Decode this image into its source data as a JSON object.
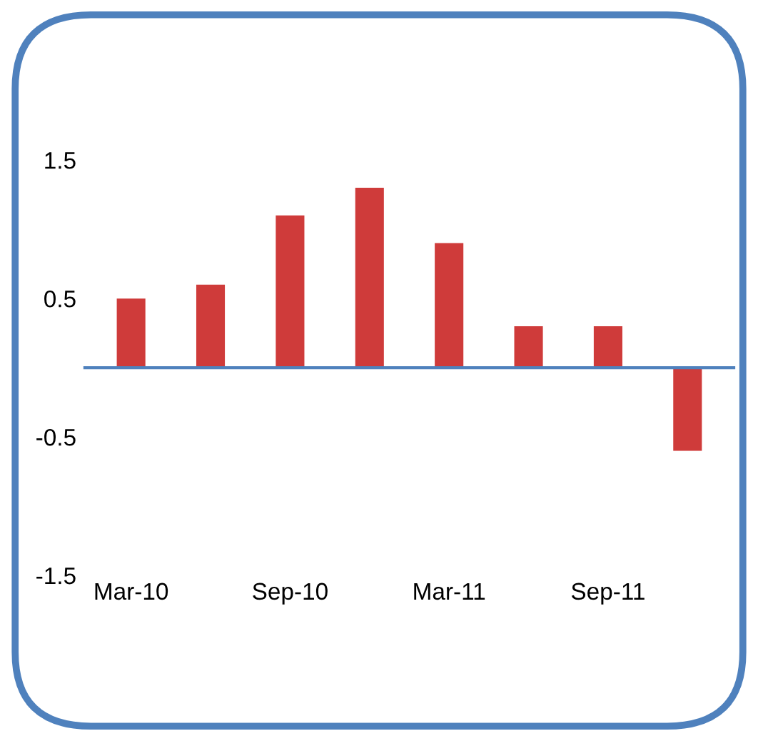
{
  "chart_data": {
    "type": "bar",
    "categories": [
      "Mar-10",
      null,
      "Sep-10",
      null,
      "Mar-11",
      null,
      "Sep-11",
      null
    ],
    "values": [
      0.5,
      0.6,
      1.1,
      1.3,
      0.9,
      0.3,
      0.3,
      -0.6
    ],
    "color": "#cf3b3a",
    "ylim": [
      -1.5,
      1.5
    ],
    "yticks": [
      -1.5,
      -0.5,
      0.5,
      1.5
    ],
    "ref_lines": [
      {
        "axis": "y",
        "value": 0,
        "color": "#4f81bd"
      }
    ],
    "grid": false,
    "legend": false
  }
}
